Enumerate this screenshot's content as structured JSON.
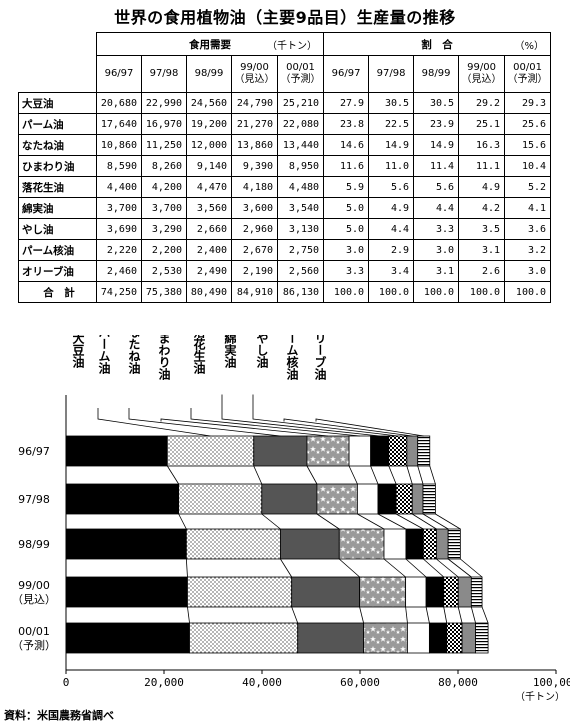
{
  "title": "世界の食用植物油（主要9品目）生産量の推移",
  "source": "資料：米国農務省調べ",
  "table": {
    "group_demand": "食用需要",
    "group_demand_unit": "（千トン）",
    "group_share": "割　合",
    "group_share_unit": "（%）",
    "years": [
      {
        "top": "96/97",
        "bottom": ""
      },
      {
        "top": "97/98",
        "bottom": ""
      },
      {
        "top": "98/99",
        "bottom": ""
      },
      {
        "top": "99/00",
        "bottom": "（見込）"
      },
      {
        "top": "00/01",
        "bottom": "（予測）"
      }
    ],
    "rows": [
      {
        "name": "大豆油",
        "demand": [
          "20,680",
          "22,990",
          "24,560",
          "24,790",
          "25,210"
        ],
        "share": [
          "27.9",
          "30.5",
          "30.5",
          "29.2",
          "29.3"
        ]
      },
      {
        "name": "パーム油",
        "demand": [
          "17,640",
          "16,970",
          "19,200",
          "21,270",
          "22,080"
        ],
        "share": [
          "23.8",
          "22.5",
          "23.9",
          "25.1",
          "25.6"
        ]
      },
      {
        "name": "なたね油",
        "demand": [
          "10,860",
          "11,250",
          "12,000",
          "13,860",
          "13,440"
        ],
        "share": [
          "14.6",
          "14.9",
          "14.9",
          "16.3",
          "15.6"
        ]
      },
      {
        "name": "ひまわり油",
        "demand": [
          "8,590",
          "8,260",
          "9,140",
          "9,390",
          "8,950"
        ],
        "share": [
          "11.6",
          "11.0",
          "11.4",
          "11.1",
          "10.4"
        ]
      },
      {
        "name": "落花生油",
        "demand": [
          "4,400",
          "4,200",
          "4,470",
          "4,180",
          "4,480"
        ],
        "share": [
          "5.9",
          "5.6",
          "5.6",
          "4.9",
          "5.2"
        ]
      },
      {
        "name": "綿実油",
        "demand": [
          "3,700",
          "3,700",
          "3,560",
          "3,600",
          "3,540"
        ],
        "share": [
          "5.0",
          "4.9",
          "4.4",
          "4.2",
          "4.1"
        ]
      },
      {
        "name": "やし油",
        "demand": [
          "3,690",
          "3,290",
          "2,660",
          "2,960",
          "3,130"
        ],
        "share": [
          "5.0",
          "4.4",
          "3.3",
          "3.5",
          "3.6"
        ]
      },
      {
        "name": "パーム核油",
        "demand": [
          "2,220",
          "2,200",
          "2,400",
          "2,670",
          "2,750"
        ],
        "share": [
          "3.0",
          "2.9",
          "3.0",
          "3.1",
          "3.2"
        ]
      },
      {
        "name": "オリーブ油",
        "demand": [
          "2,460",
          "2,530",
          "2,490",
          "2,190",
          "2,560"
        ],
        "share": [
          "3.3",
          "3.4",
          "3.1",
          "2.6",
          "3.0"
        ]
      }
    ],
    "total": {
      "name": "合　計",
      "demand": [
        "74,250",
        "75,380",
        "80,490",
        "84,910",
        "86,130"
      ],
      "share": [
        "100.0",
        "100.0",
        "100.0",
        "100.0",
        "100.0"
      ]
    }
  },
  "chart_data": {
    "type": "bar",
    "orientation": "horizontal-stacked",
    "categories": [
      "96/97",
      "97/98",
      "98/99",
      "99/00\n（見込）",
      "00/01\n（予測）"
    ],
    "series": [
      {
        "name": "大豆油",
        "values": [
          20680,
          22990,
          24560,
          24790,
          25210
        ],
        "pattern": "black"
      },
      {
        "name": "パーム油",
        "values": [
          17640,
          16970,
          19200,
          21270,
          22080
        ],
        "pattern": "dots"
      },
      {
        "name": "なたね油",
        "values": [
          10860,
          11250,
          12000,
          13860,
          13440
        ],
        "pattern": "darkgray"
      },
      {
        "name": "ひまわり油",
        "values": [
          8590,
          8260,
          9140,
          9390,
          8950
        ],
        "pattern": "stars"
      },
      {
        "name": "落花生油",
        "values": [
          4400,
          4200,
          4470,
          4180,
          4480
        ],
        "pattern": "white"
      },
      {
        "name": "綿実油",
        "values": [
          3700,
          3700,
          3560,
          3600,
          3540
        ],
        "pattern": "black"
      },
      {
        "name": "やし油",
        "values": [
          3690,
          3290,
          2660,
          2960,
          3130
        ],
        "pattern": "checker"
      },
      {
        "name": "パーム核油",
        "values": [
          2220,
          2200,
          2400,
          2670,
          2750
        ],
        "pattern": "gray"
      },
      {
        "name": "オリーブ油",
        "values": [
          2460,
          2530,
          2490,
          2190,
          2560
        ],
        "pattern": "hlines"
      }
    ],
    "xlim": [
      0,
      100000
    ],
    "xticks": [
      "0",
      "20,000",
      "40,000",
      "60,000",
      "80,000",
      "100,000"
    ],
    "xlabel": "（千トン）",
    "legend": "vertical labels above bars with leader lines"
  }
}
